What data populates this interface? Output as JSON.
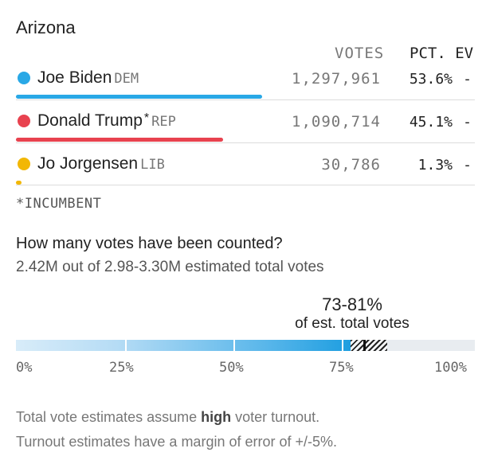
{
  "state": "Arizona",
  "columns": {
    "votes": "VOTES",
    "pct_ev": "PCT. EV"
  },
  "candidates": [
    {
      "name": "Joe Biden",
      "party": "DEM",
      "incumbent_mark": "",
      "votes": "1,297,961",
      "pct": "53.6%",
      "ev": "-",
      "color": "#29a8e6",
      "share": 0.536
    },
    {
      "name": "Donald Trump",
      "party": "REP",
      "incumbent_mark": "*",
      "votes": "1,090,714",
      "pct": "45.1%",
      "ev": "-",
      "color": "#e8424f",
      "share": 0.451
    },
    {
      "name": "Jo Jorgensen",
      "party": "LIB",
      "incumbent_mark": "",
      "votes": "30,786",
      "pct": "1.3%",
      "ev": "-",
      "color": "#f2b705",
      "share": 0.013
    }
  ],
  "footnote": "*INCUMBENT",
  "counted": {
    "question": "How many votes have been counted?",
    "summary": "2.42M out of 2.98-3.30M estimated total votes",
    "range": "73-81%",
    "range_label": "of est. total votes",
    "range_low": 0.73,
    "range_high": 0.81,
    "axis_labels": [
      "0%",
      "25%",
      "50%",
      "75%",
      "100%"
    ]
  },
  "notes": {
    "line1_before": "Total vote estimates assume ",
    "line1_bold": "high",
    "line1_after": " voter turnout.",
    "line2": "Turnout estimates have a margin of error of +/-5%."
  }
}
